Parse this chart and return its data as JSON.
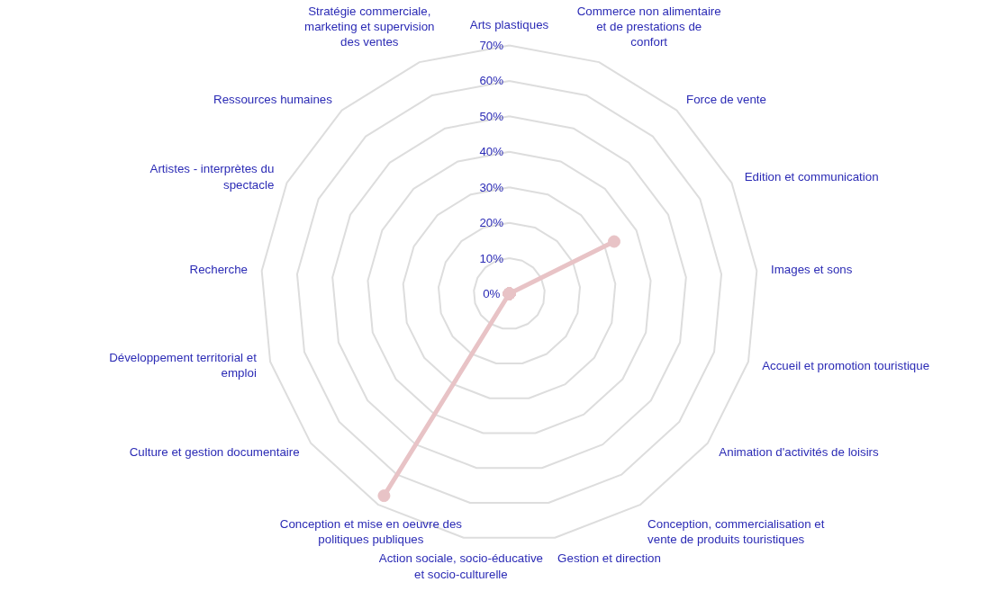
{
  "chart_data": {
    "type": "radar",
    "categories": [
      "Arts plastiques",
      "Commerce non alimentaire et de prestations de confort",
      "Force de vente",
      "Edition et communication",
      "Images et sons",
      "Accueil et promotion touristique",
      "Animation d'activités de loisirs",
      "Conception, commercialisation et vente de produits touristiques",
      "Gestion et direction",
      "Action sociale, socio-éducative et socio-culturelle",
      "Conception et mise en oeuvre des politiques publiques",
      "Culture et gestion documentaire",
      "Développement territorial et emploi",
      "Recherche",
      "Artistes - interprètes du spectacle",
      "Ressources humaines",
      "Stratégie commerciale, marketing et supervision des ventes"
    ],
    "series": [
      {
        "color": "#e8c3c6",
        "values": [
          0,
          0,
          0,
          33,
          0,
          0,
          0,
          0,
          0,
          0,
          67,
          0,
          0,
          0,
          0,
          0,
          0
        ]
      }
    ],
    "ylim": [
      0,
      70
    ],
    "yticks": [
      {
        "value": 0,
        "label": "0%"
      },
      {
        "value": 10,
        "label": "10%"
      },
      {
        "value": 20,
        "label": "20%"
      },
      {
        "value": 30,
        "label": "30%"
      },
      {
        "value": 40,
        "label": "40%"
      },
      {
        "value": 50,
        "label": "50%"
      },
      {
        "value": 60,
        "label": "60%"
      },
      {
        "value": 70,
        "label": "70%"
      }
    ],
    "grid": true,
    "marker": "circle",
    "line_style": "solid"
  }
}
